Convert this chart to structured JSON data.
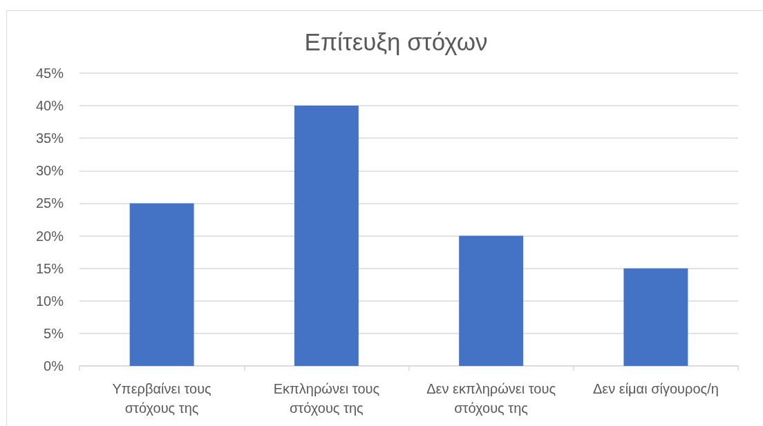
{
  "chart_data": {
    "type": "bar",
    "title": "Επίτευξη στόχων",
    "categories": [
      "Υπερβαίνει τους στόχους της",
      "Εκπληρώνει τους στόχους της",
      "Δεν εκπληρώνει τους στόχους της",
      "Δεν είμαι σίγουρος/η"
    ],
    "values": [
      25,
      40,
      20,
      15
    ],
    "color": "#4472c4",
    "ylim": [
      0,
      45
    ],
    "yticks": [
      {
        "value": 0,
        "label": "0%"
      },
      {
        "value": 5,
        "label": "5%"
      },
      {
        "value": 10,
        "label": "10%"
      },
      {
        "value": 15,
        "label": "15%"
      },
      {
        "value": 20,
        "label": "20%"
      },
      {
        "value": 25,
        "label": "25%"
      },
      {
        "value": 30,
        "label": "30%"
      },
      {
        "value": 35,
        "label": "35%"
      },
      {
        "value": 40,
        "label": "40%"
      },
      {
        "value": 45,
        "label": "45%"
      }
    ],
    "grid": "y"
  }
}
